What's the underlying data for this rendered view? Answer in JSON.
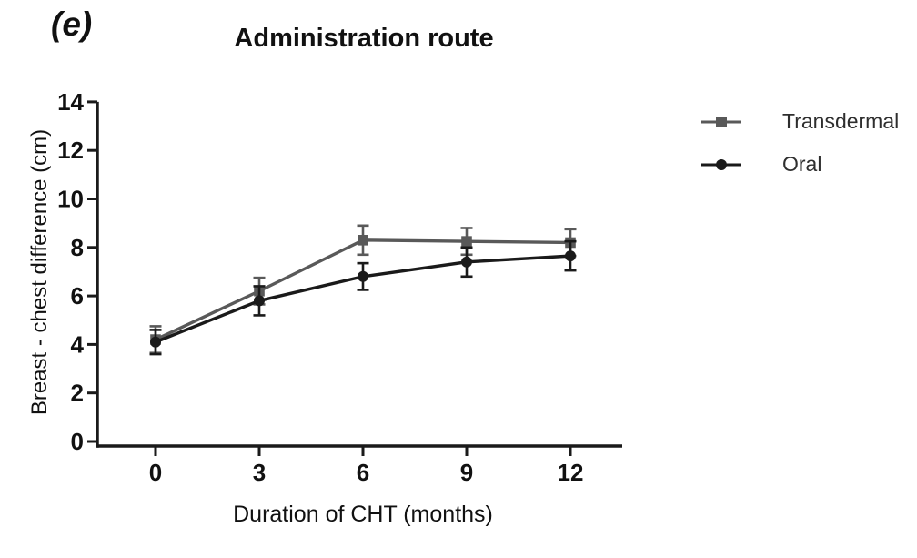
{
  "chart_data": {
    "type": "line",
    "panel_label": "(e)",
    "title": "Administration route",
    "xlabel": "Duration of CHT (months)",
    "ylabel": "Breast - chest difference (cm)",
    "x": [
      0,
      3,
      6,
      9,
      12
    ],
    "xticks": [
      0,
      3,
      6,
      9,
      12
    ],
    "yticks": [
      0,
      2,
      4,
      6,
      8,
      10,
      12,
      14
    ],
    "ylim": [
      0,
      14
    ],
    "xlim": [
      -1.7,
      13.5
    ],
    "grid": false,
    "legend_position": "right",
    "error_bars": true,
    "axis_color": "#1a1a1a",
    "series": [
      {
        "name": "Transdermal",
        "marker": "square",
        "color": "#595959",
        "values": [
          4.2,
          6.2,
          8.3,
          8.25,
          8.2
        ],
        "errors": [
          0.55,
          0.55,
          0.6,
          0.55,
          0.55
        ]
      },
      {
        "name": "Oral",
        "marker": "circle",
        "color": "#1a1a1a",
        "values": [
          4.1,
          5.8,
          6.8,
          7.4,
          7.65
        ],
        "errors": [
          0.5,
          0.6,
          0.55,
          0.6,
          0.6
        ]
      }
    ]
  }
}
